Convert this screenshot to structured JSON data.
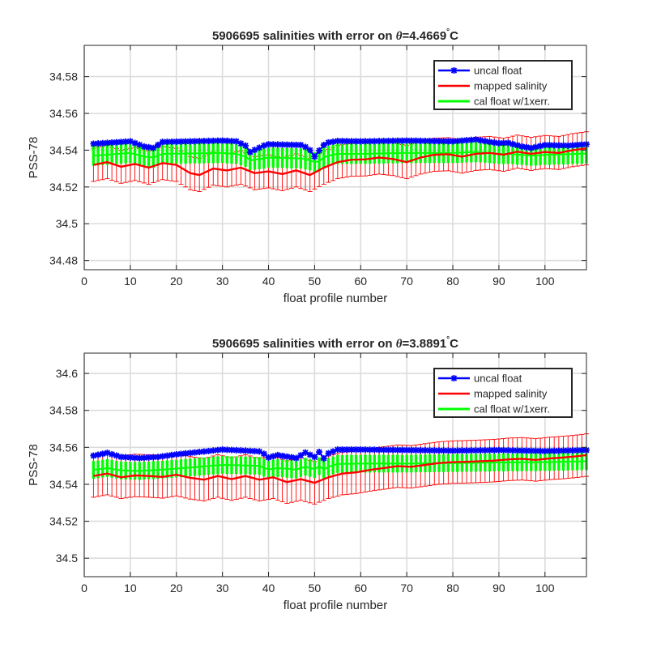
{
  "colors": {
    "uncal": "#0000ff",
    "mapped": "#ff0000",
    "cal": "#00ff00",
    "grid": "#dcdcdc",
    "axis": "#262626"
  },
  "chart_data": [
    {
      "type": "line",
      "title_prefix": "5906695 salinities with error on ",
      "title_theta": "θ",
      "title_value": "=4.4669",
      "title_deg": "°",
      "title_unit": "C",
      "xlabel": "float profile number",
      "ylabel": "PSS-78",
      "xlim": [
        0,
        109
      ],
      "ylim": [
        34.475,
        34.597
      ],
      "xticks": [
        0,
        10,
        20,
        30,
        40,
        50,
        60,
        70,
        80,
        90,
        100
      ],
      "yticks": [
        34.48,
        34.5,
        34.52,
        34.54,
        34.56,
        34.58
      ],
      "ytick_labels": [
        "34.48",
        "34.5",
        "34.52",
        "34.54",
        "34.56",
        "34.58"
      ],
      "grid": true,
      "legend_position": "top-right",
      "legend": [
        "uncal float",
        "mapped salinity",
        "cal float w/1xerr."
      ],
      "x_start": 2,
      "x_end": 109,
      "series": [
        {
          "name": "uncal float",
          "key_x": [
            2,
            10,
            13,
            15,
            17,
            30,
            33,
            35,
            36,
            39,
            40,
            47,
            48,
            49,
            50,
            51,
            52,
            53,
            55,
            60,
            70,
            80,
            85,
            88,
            90,
            92,
            95,
            97,
            100,
            105,
            109
          ],
          "key_y": [
            34.5435,
            34.5448,
            34.542,
            34.5412,
            34.5445,
            34.5452,
            34.5448,
            34.5425,
            34.539,
            34.5425,
            34.5432,
            34.5428,
            34.5418,
            34.54,
            34.5365,
            34.5398,
            34.5428,
            34.5442,
            34.545,
            34.5448,
            34.5452,
            34.5448,
            34.5458,
            34.5445,
            34.5438,
            34.544,
            34.542,
            34.5412,
            34.5428,
            34.5425,
            34.5432
          ]
        },
        {
          "name": "mapped salinity",
          "key_x": [
            2,
            5,
            8,
            11,
            14,
            17,
            20,
            23,
            25,
            28,
            31,
            34,
            37,
            40,
            43,
            46,
            49,
            52,
            55,
            58,
            61,
            64,
            67,
            70,
            73,
            76,
            79,
            82,
            85,
            88,
            91,
            94,
            97,
            100,
            103,
            106,
            109
          ],
          "key_y": [
            34.532,
            34.5335,
            34.531,
            34.5325,
            34.5305,
            34.533,
            34.532,
            34.5275,
            34.5265,
            34.53,
            34.529,
            34.5305,
            34.5275,
            34.5285,
            34.527,
            34.529,
            34.5265,
            34.5305,
            34.5335,
            34.5348,
            34.535,
            34.536,
            34.5352,
            34.5335,
            34.536,
            34.5375,
            34.5378,
            34.5365,
            34.538,
            34.5385,
            34.5375,
            34.5392,
            34.538,
            34.539,
            34.5385,
            34.54,
            34.541
          ],
          "error": 0.009
        },
        {
          "name": "cal float w/1xerr.",
          "key_x": [
            2,
            10,
            13,
            15,
            17,
            30,
            33,
            35,
            36,
            39,
            40,
            47,
            48,
            49,
            50,
            51,
            52,
            53,
            55,
            60,
            70,
            80,
            85,
            88,
            90,
            92,
            95,
            97,
            100,
            105,
            109
          ],
          "key_y": [
            34.537,
            34.5385,
            34.5365,
            34.536,
            34.538,
            34.5385,
            34.538,
            34.5365,
            34.5345,
            34.5355,
            34.536,
            34.5355,
            34.535,
            34.5345,
            34.5335,
            34.534,
            34.536,
            34.537,
            34.538,
            34.538,
            34.5385,
            34.5385,
            34.539,
            34.5385,
            34.538,
            34.538,
            34.5375,
            34.537,
            34.5375,
            34.5378,
            34.5382
          ],
          "error": 0.0055
        }
      ]
    },
    {
      "type": "line",
      "title_prefix": "5906695 salinities with error on ",
      "title_theta": "θ",
      "title_value": "=3.8891",
      "title_deg": "°",
      "title_unit": "C",
      "xlabel": "float profile number",
      "ylabel": "PSS-78",
      "xlim": [
        0,
        109
      ],
      "ylim": [
        34.49,
        34.611
      ],
      "xticks": [
        0,
        10,
        20,
        30,
        40,
        50,
        60,
        70,
        80,
        90,
        100
      ],
      "yticks": [
        34.5,
        34.52,
        34.54,
        34.56,
        34.58,
        34.6
      ],
      "ytick_labels": [
        "34.5",
        "34.52",
        "34.54",
        "34.56",
        "34.58",
        "34.6"
      ],
      "grid": true,
      "legend_position": "top-right",
      "legend": [
        "uncal float",
        "mapped salinity",
        "cal float w/1xerr."
      ],
      "x_start": 2,
      "x_end": 109,
      "series": [
        {
          "name": "uncal float",
          "key_x": [
            2,
            5,
            8,
            12,
            16,
            20,
            25,
            30,
            35,
            38,
            39,
            40,
            42,
            46,
            48,
            50,
            51,
            52,
            53,
            55,
            60,
            70,
            80,
            90,
            100,
            109
          ],
          "key_y": [
            34.5555,
            34.557,
            34.5548,
            34.5542,
            34.5548,
            34.5562,
            34.5575,
            34.5588,
            34.5582,
            34.5578,
            34.5565,
            34.5545,
            34.5558,
            34.5542,
            34.5572,
            34.5548,
            34.5575,
            34.554,
            34.5568,
            34.5588,
            34.5588,
            34.5585,
            34.5582,
            34.5585,
            34.558,
            34.5585
          ]
        },
        {
          "name": "mapped salinity",
          "key_x": [
            2,
            5,
            8,
            11,
            14,
            17,
            20,
            23,
            26,
            29,
            32,
            35,
            38,
            41,
            44,
            47,
            50,
            53,
            56,
            59,
            62,
            65,
            68,
            71,
            74,
            77,
            80,
            83,
            86,
            89,
            92,
            95,
            98,
            101,
            104,
            107,
            109
          ],
          "key_y": [
            34.5445,
            34.5458,
            34.5438,
            34.5448,
            34.5445,
            34.544,
            34.5452,
            34.5435,
            34.5425,
            34.5445,
            34.5428,
            34.5445,
            34.5425,
            34.5438,
            34.5412,
            34.5428,
            34.5408,
            34.5438,
            34.5458,
            34.5465,
            34.5478,
            34.5488,
            34.5498,
            34.5495,
            34.5505,
            34.5515,
            34.552,
            34.5522,
            34.5525,
            34.5528,
            34.5535,
            34.5538,
            34.5532,
            34.554,
            34.5545,
            34.5552,
            34.5558
          ],
          "error": 0.0115
        },
        {
          "name": "cal float w/1xerr.",
          "key_x": [
            2,
            5,
            8,
            12,
            16,
            20,
            25,
            30,
            35,
            38,
            39,
            40,
            42,
            46,
            48,
            50,
            51,
            52,
            53,
            55,
            60,
            70,
            80,
            90,
            100,
            109
          ],
          "key_y": [
            34.5478,
            34.5488,
            34.5475,
            34.5472,
            34.5478,
            34.5485,
            34.5495,
            34.5505,
            34.5502,
            34.55,
            34.549,
            34.548,
            34.5488,
            34.548,
            34.5495,
            34.5482,
            34.5498,
            34.548,
            34.5495,
            34.551,
            34.5512,
            34.5512,
            34.5515,
            34.5518,
            34.552,
            34.5525
          ],
          "error": 0.0048
        }
      ]
    }
  ]
}
